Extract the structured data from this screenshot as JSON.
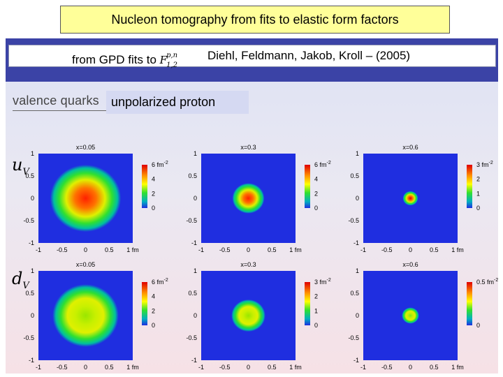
{
  "slide": {
    "title": "Nucleon tomography from fits to elastic form factors",
    "ref_prefix": "from GPD fits to",
    "ref_symbol": "F",
    "ref_superscript": "p,n",
    "ref_subscript": "1,2",
    "ref_authors": "Diehl, Feldmann, Jakob, Kroll – (2005)",
    "valence_label": "valence quarks",
    "unpolarized_label": "unpolarized proton",
    "row_labels": [
      "u",
      "d"
    ],
    "row_subscript": "V"
  },
  "plots": [
    {
      "row": 0,
      "x_label": "x=0.05",
      "cb_ticks": [
        "6 fm",
        "4",
        "2",
        "0"
      ],
      "cb_top_exp": "-2",
      "peak": "#ff2000",
      "radius": 0.75
    },
    {
      "row": 0,
      "x_label": "x=0.3",
      "cb_ticks": [
        "6 fm",
        "4",
        "2",
        "0"
      ],
      "cb_top_exp": "-2",
      "peak": "#ff2000",
      "radius": 0.34
    },
    {
      "row": 0,
      "x_label": "x=0.6",
      "cb_ticks": [
        "3 fm",
        "2",
        "1",
        "0"
      ],
      "cb_top_exp": "-2",
      "peak": "#e00000",
      "radius": 0.16
    },
    {
      "row": 1,
      "x_label": "x=0.05",
      "cb_ticks": [
        "6 fm",
        "4",
        "2",
        "0"
      ],
      "cb_top_exp": "-2",
      "peak": "#9ae600",
      "radius": 0.7
    },
    {
      "row": 1,
      "x_label": "x=0.3",
      "cb_ticks": [
        "3 fm",
        "2",
        "1",
        "0"
      ],
      "cb_top_exp": "-2",
      "peak": "#9ae600",
      "radius": 0.36
    },
    {
      "row": 1,
      "x_label": "x=0.6",
      "cb_ticks": [
        "0.5 fm",
        "",
        "",
        "0"
      ],
      "cb_top_exp": "-2",
      "peak": "#80ee10",
      "radius": 0.18
    }
  ],
  "axis_ticks_y": [
    "1",
    "0.5",
    "0",
    "-0.5",
    "-1"
  ],
  "axis_ticks_x": [
    "-1",
    "-0.5",
    "0",
    "0.5",
    "1 fm"
  ]
}
